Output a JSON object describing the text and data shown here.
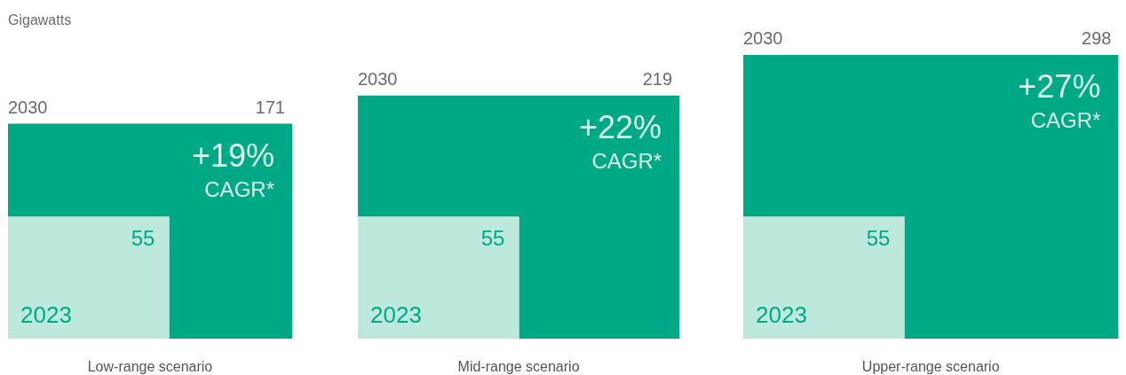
{
  "chart_data": [
    {
      "type": "other",
      "ylabel": "Gigawatts",
      "categories": [
        "2023",
        "2030"
      ],
      "values": [
        55,
        171
      ],
      "value_labels": [
        "55",
        "171"
      ],
      "colors": [
        "#bde9dd",
        "#00a986"
      ],
      "annotations": [
        "+19%",
        "CAGR*"
      ],
      "xlabel": "Low-range scenario"
    },
    {
      "type": "other",
      "categories": [
        "2023",
        "2030"
      ],
      "values": [
        55,
        219
      ],
      "value_labels": [
        "55",
        "219"
      ],
      "colors": [
        "#bde9dd",
        "#00a986"
      ],
      "annotations": [
        "+22%",
        "CAGR*"
      ],
      "xlabel": "Mid-range scenario"
    },
    {
      "type": "other",
      "categories": [
        "2023",
        "2030"
      ],
      "values": [
        55,
        298
      ],
      "value_labels": [
        "55",
        "298"
      ],
      "colors": [
        "#bde9dd",
        "#00a986"
      ],
      "annotations": [
        "+27%",
        "CAGR*"
      ],
      "xlabel": "Upper-range scenario"
    }
  ]
}
